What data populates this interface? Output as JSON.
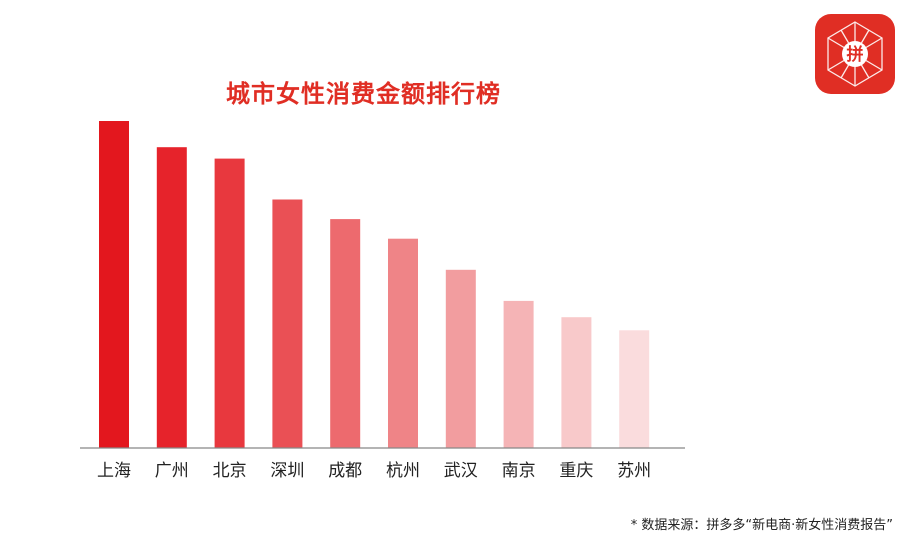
{
  "logo": {
    "icon": "pinduoduo-logo",
    "text": "拼",
    "color": "#e02e24"
  },
  "footnote": "* 数据来源：拼多多“新电商·新女性消费报告”",
  "chart_data": {
    "type": "bar",
    "title": "城市女性消费金额排行榜",
    "xlabel": "",
    "ylabel": "",
    "categories": [
      "上海",
      "广州",
      "北京",
      "深圳",
      "成都",
      "杭州",
      "武汉",
      "南京",
      "重庆",
      "苏州"
    ],
    "values": [
      100,
      92,
      88.5,
      76,
      70,
      64,
      54.5,
      45,
      40,
      36
    ],
    "ylim": [
      0,
      100
    ],
    "grid": false,
    "value_axis_ticks": false,
    "bar_colors": [
      "#e3171e",
      "#e6232b",
      "#e8383e",
      "#ea5055",
      "#ed6a6e",
      "#ef8487",
      "#f29d9f",
      "#f5b4b6",
      "#f8c9ca",
      "#fadcdd"
    ]
  }
}
